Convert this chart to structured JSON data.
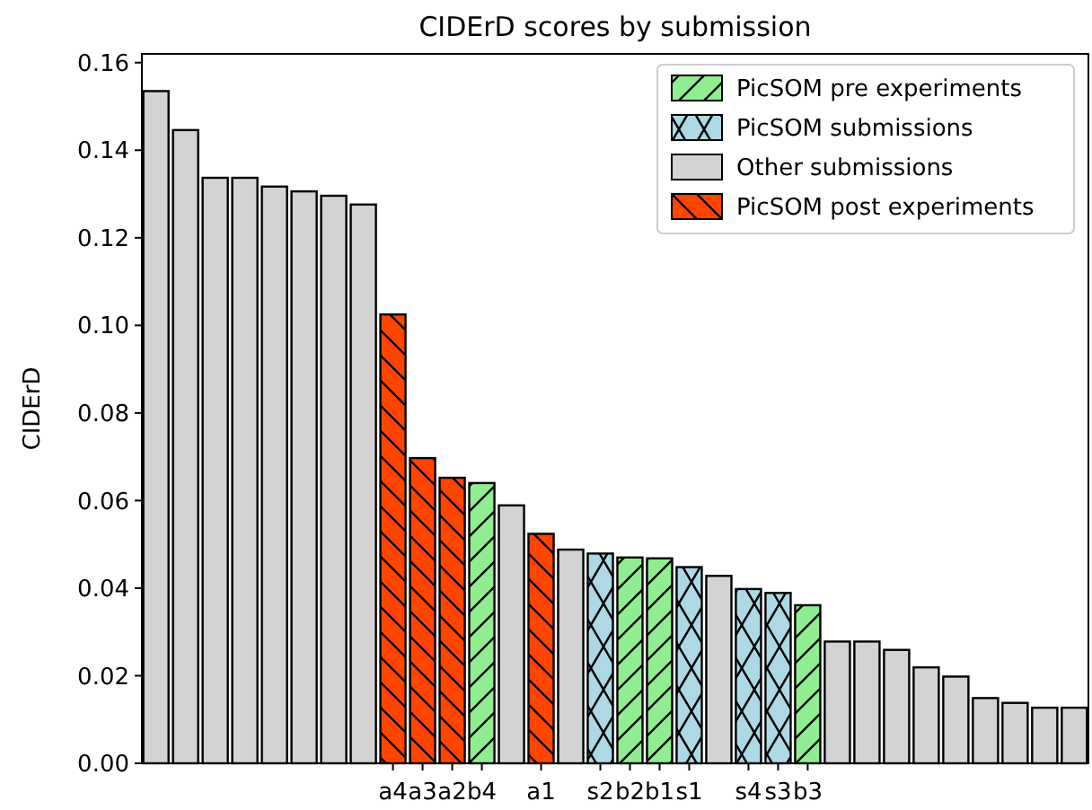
{
  "chart_data": {
    "type": "bar",
    "title": "CIDErD scores by submission",
    "ylabel": "CIDErD",
    "categories": [
      null,
      null,
      null,
      null,
      null,
      null,
      null,
      null,
      "a4",
      "a3",
      "a2",
      "b4",
      null,
      "a1",
      null,
      "s2",
      "b2",
      "b1",
      "s1",
      null,
      "s4",
      "s3",
      "b3",
      null,
      null,
      null,
      null,
      null,
      null,
      null,
      null,
      null
    ],
    "series": [
      {
        "name": "PicSOM pre experiments",
        "color": "#90ee90",
        "values": [
          null,
          null,
          null,
          null,
          null,
          null,
          null,
          null,
          null,
          null,
          null,
          0.064,
          null,
          null,
          null,
          null,
          0.047,
          0.0468,
          null,
          null,
          null,
          null,
          0.0361,
          null,
          null,
          null,
          null,
          null,
          null,
          null,
          null,
          null
        ]
      },
      {
        "name": "PicSOM submissions",
        "color": "#add8e6",
        "values": [
          null,
          null,
          null,
          null,
          null,
          null,
          null,
          null,
          null,
          null,
          null,
          null,
          null,
          null,
          null,
          0.0479,
          null,
          null,
          0.0448,
          null,
          0.0398,
          0.0389,
          null,
          null,
          null,
          null,
          null,
          null,
          null,
          null,
          null,
          null
        ]
      },
      {
        "name": "Other submissions",
        "color": "#d3d3d3",
        "values": [
          0.1535,
          0.1446,
          0.1337,
          0.1337,
          0.1317,
          0.1306,
          0.1296,
          0.1276,
          null,
          null,
          null,
          null,
          0.0589,
          null,
          0.0488,
          null,
          null,
          null,
          null,
          0.0428,
          null,
          null,
          null,
          0.0278,
          0.0278,
          0.0259,
          0.0219,
          0.0198,
          0.0149,
          0.0138,
          0.0127,
          0.0127
        ]
      },
      {
        "name": "PicSOM post experiments",
        "color": "#ff4500",
        "values": [
          null,
          null,
          null,
          null,
          null,
          null,
          null,
          null,
          0.1025,
          0.0697,
          0.0652,
          null,
          null,
          0.0524,
          null,
          null,
          null,
          null,
          null,
          null,
          null,
          null,
          null,
          null,
          null,
          null,
          null,
          null,
          null,
          null,
          null,
          null
        ]
      }
    ],
    "ylim": [
      0,
      0.162
    ],
    "yticks": [
      {
        "value": 0,
        "label": "0.00"
      },
      {
        "value": 0.02,
        "label": "0.02"
      },
      {
        "value": 0.04,
        "label": "0.04"
      },
      {
        "value": 0.06,
        "label": "0.06"
      },
      {
        "value": 0.08,
        "label": "0.08"
      },
      {
        "value": 0.1,
        "label": "0.10"
      },
      {
        "value": 0.12,
        "label": "0.12"
      },
      {
        "value": 0.14,
        "label": "0.14"
      },
      {
        "value": 0.16,
        "label": "0.16"
      }
    ],
    "legend": "top right",
    "grid": false
  }
}
